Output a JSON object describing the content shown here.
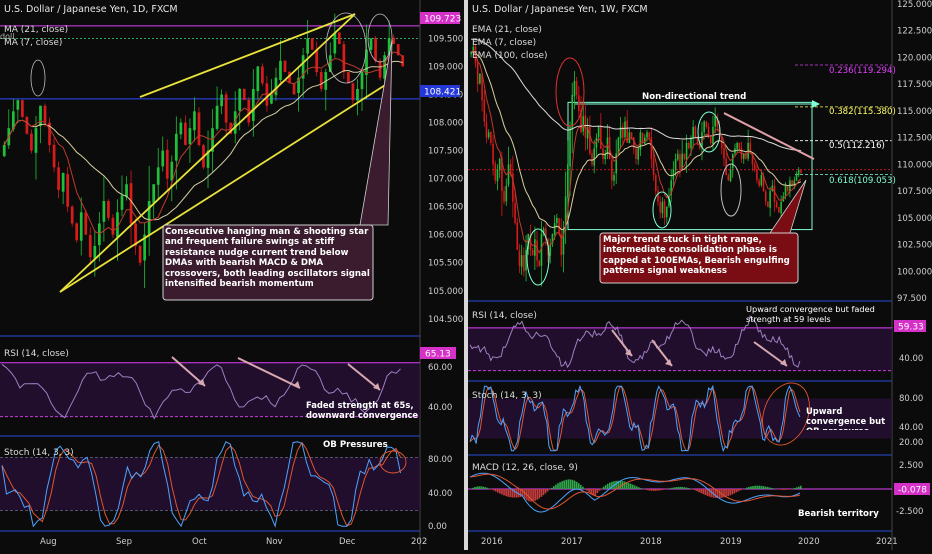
{
  "colors": {
    "bg": "#0b0b0b",
    "up": "#1fbf3a",
    "down": "#d81b1b",
    "sepia_price": "#e8e23a",
    "magenta": "#e040fb",
    "blue_line": "#2f4bff",
    "ma_fast": "#c0392b",
    "ma_slow": "#d8d0a0",
    "ema_long": "#dddddd",
    "osc": "#9e7fbf",
    "stoch_k": "#4da3ff",
    "stoch_d": "#e0552e",
    "callout_bg": "#3a1c2e",
    "callout2_bg": "#7a0d14",
    "box": "#7fffd4"
  },
  "left": {
    "title": "U.S. Dollar / Japanese Yen, 1D, FXCM",
    "legend": [
      "MA (21, close)",
      "MA (7, close)"
    ],
    "legend_extra": "doll",
    "price_tags": [
      "109.723",
      "108.421"
    ],
    "price_axis": [
      "109.500",
      "109.000",
      "108.500",
      "108.000",
      "107.500",
      "107.000",
      "106.500",
      "106.000",
      "105.500",
      "105.000",
      "104.500"
    ],
    "callout": "Consecutive hanging man & shooting star and frequent failure swings at stiff resistance nudge current trend below DMAs with bearish MACD & DMA crossovers, both leading oscillators signal intensified bearish momentum",
    "rsi_label": "RSI (14, close)",
    "rsi_tag": "65.13",
    "rsi_axis": [
      "60.00",
      "40.00"
    ],
    "rsi_note": "Faded strength at 65s, downward convergence",
    "stoch_label": "Stoch (14, 3, 3)",
    "stoch_note": "OB Pressures",
    "stoch_axis": [
      "80.00",
      "40.00",
      "0.00"
    ],
    "x_axis": [
      "Aug",
      "Sep",
      "Oct",
      "Nov",
      "Dec",
      "202"
    ]
  },
  "right": {
    "title": "U.S. Dollar / Japanese Yen, 1W, FXCM",
    "legend": [
      "EMA (21, close)",
      "EMA (7, close)",
      "EMA (100, close)"
    ],
    "price_axis": [
      "125.000",
      "122.500",
      "120.000",
      "117.500",
      "115.000",
      "112.500",
      "110.000",
      "107.500",
      "105.000",
      "102.500",
      "100.000",
      "97.500"
    ],
    "fib": [
      "0.236(119.294)",
      "0.382(115.380)",
      "0.5(112.216)",
      "0.618(109.053)"
    ],
    "box_label": "Non-directional trend",
    "callout": "Major trend stuck in tight range, intermediate consolidation phase is capped at 100EMAs, Bearish engulfing patterns signal weakness",
    "rsi_label": "RSI (14, close)",
    "rsi_note": "Upward convergence but faded strength at 59 levels",
    "rsi_tag": "59.33",
    "rsi_axis": [
      "40.00"
    ],
    "stoch_label": "Stoch (14, 3, 3)",
    "stoch_note": "Upward convergence but OB pressures",
    "stoch_axis": [
      "80.00",
      "40.00",
      "20.00"
    ],
    "macd_label": "MACD (12, 26, close, 9)",
    "macd_tag": "-0.078",
    "macd_axis": [
      "2.500",
      "-2.500"
    ],
    "macd_note": "Bearish territory",
    "x_axis": [
      "2016",
      "2017",
      "2018",
      "2019",
      "2020",
      "2021"
    ]
  },
  "chart_data": [
    {
      "type": "candlestick",
      "title": "U.S. Dollar / Japanese Yen, 1D, FXCM",
      "ylim": [
        104.3,
        109.9
      ],
      "series": [
        {
          "name": "MA (21, close)"
        },
        {
          "name": "MA (7, close)"
        }
      ],
      "x_ticks": [
        "Aug",
        "Sep",
        "Oct",
        "Nov",
        "Dec",
        "202"
      ],
      "closes": [
        107.6,
        107.9,
        108.2,
        108.4,
        108.1,
        107.8,
        107.5,
        107.9,
        108.3,
        108.0,
        107.6,
        107.2,
        106.8,
        107.1,
        106.5,
        106.2,
        105.9,
        106.4,
        106.0,
        105.6,
        105.8,
        106.2,
        106.6,
        106.3,
        106.0,
        106.4,
        106.7,
        106.9,
        106.2,
        105.8,
        105.5,
        106.0,
        106.6,
        106.9,
        107.2,
        107.5,
        107.0,
        107.3,
        107.8,
        108.0,
        107.6,
        107.9,
        108.2,
        107.6,
        107.2,
        107.5,
        107.9,
        108.3,
        108.5,
        108.0,
        107.8,
        108.2,
        108.6,
        108.4,
        108.0,
        108.6,
        109.0,
        108.7,
        108.3,
        108.5,
        108.8,
        109.1,
        108.9,
        108.7,
        108.5,
        108.8,
        109.2,
        109.5,
        109.3,
        108.9,
        108.6,
        108.9,
        109.2,
        109.6,
        109.4,
        108.9,
        108.7,
        108.4,
        108.6,
        108.9,
        109.3,
        109.5,
        109.1,
        108.8,
        109.2,
        109.5,
        109.4,
        109.2,
        109.0
      ],
      "rsi_last": 65.13
    },
    {
      "type": "candlestick",
      "title": "U.S. Dollar / Japanese Yen, 1W, FXCM",
      "ylim": [
        97.5,
        125.0
      ],
      "series": [
        {
          "name": "EMA (21, close)"
        },
        {
          "name": "EMA (7, close)"
        },
        {
          "name": "EMA (100, close)"
        }
      ],
      "x_ticks": [
        "2016",
        "2017",
        "2018",
        "2019",
        "2020",
        "2021"
      ],
      "fib_levels": [
        119.294,
        115.38,
        112.216,
        109.053
      ],
      "closes": [
        120.5,
        121.0,
        119.5,
        117.5,
        118.5,
        116.0,
        114.0,
        112.5,
        113.0,
        112.0,
        110.0,
        108.5,
        109.5,
        110.5,
        107.5,
        106.5,
        108.0,
        110.0,
        109.0,
        106.5,
        104.5,
        102.0,
        100.5,
        101.5,
        100.0,
        102.0,
        103.5,
        102.0,
        101.5,
        103.0,
        101.0,
        100.5,
        103.5,
        104.0,
        103.0,
        101.5,
        102.5,
        103.5,
        104.5,
        105.0,
        103.5,
        101.5,
        104.0,
        107.0,
        110.0,
        113.5,
        116.5,
        117.8,
        116.5,
        115.0,
        113.0,
        114.5,
        112.5,
        113.5,
        111.0,
        110.0,
        111.5,
        112.5,
        113.5,
        111.5,
        110.5,
        111.0,
        112.5,
        110.5,
        108.5,
        109.0,
        111.0,
        112.5,
        113.5,
        112.5,
        114.0,
        112.0,
        113.0,
        112.5,
        111.5,
        110.5,
        111.5,
        113.0,
        112.0,
        112.5,
        113.0,
        112.5,
        110.5,
        109.0,
        107.5,
        106.5,
        105.5,
        106.5,
        105.0,
        106.0,
        107.0,
        108.5,
        109.5,
        110.5,
        111.0,
        109.5,
        111.0,
        110.5,
        112.0,
        111.5,
        112.5,
        113.5,
        112.5,
        112.0,
        111.5,
        113.0,
        114.0,
        113.5,
        112.5,
        112.0,
        113.5,
        114.5,
        113.5,
        112.5,
        111.5,
        110.5,
        109.0,
        108.5,
        109.5,
        111.0,
        111.5,
        112.0,
        111.5,
        110.5,
        111.0,
        110.5,
        112.0,
        111.0,
        110.0,
        109.5,
        108.5,
        108.0,
        109.0,
        107.5,
        106.5,
        106.0,
        107.5,
        108.0,
        106.5,
        106.0,
        105.5,
        106.5,
        107.0,
        108.0,
        107.5,
        108.5,
        108.0,
        108.5,
        109.0,
        109.5,
        109.2
      ],
      "rsi_last": 59.33,
      "macd_last": -0.078
    }
  ]
}
